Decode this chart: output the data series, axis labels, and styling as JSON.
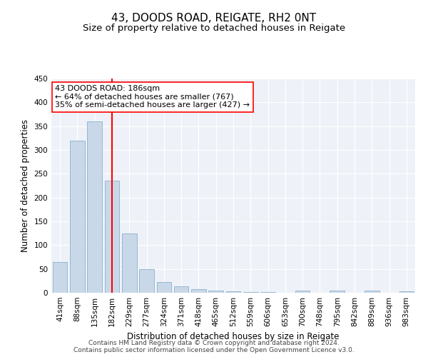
{
  "title": "43, DOODS ROAD, REIGATE, RH2 0NT",
  "subtitle": "Size of property relative to detached houses in Reigate",
  "xlabel": "Distribution of detached houses by size in Reigate",
  "ylabel": "Number of detached properties",
  "footer_line1": "Contains HM Land Registry data © Crown copyright and database right 2024.",
  "footer_line2": "Contains public sector information licensed under the Open Government Licence v3.0.",
  "categories": [
    "41sqm",
    "88sqm",
    "135sqm",
    "182sqm",
    "229sqm",
    "277sqm",
    "324sqm",
    "371sqm",
    "418sqm",
    "465sqm",
    "512sqm",
    "559sqm",
    "606sqm",
    "653sqm",
    "700sqm",
    "748sqm",
    "795sqm",
    "842sqm",
    "889sqm",
    "936sqm",
    "983sqm"
  ],
  "values": [
    65,
    320,
    360,
    235,
    125,
    50,
    22,
    13,
    8,
    5,
    3,
    1,
    1,
    0,
    5,
    0,
    5,
    0,
    5,
    0,
    3
  ],
  "bar_color": "#c8d8e8",
  "bar_edge_color": "#8ab0cc",
  "vline_x_index": 3,
  "vline_color": "red",
  "annotation_line1": "43 DOODS ROAD: 186sqm",
  "annotation_line2": "← 64% of detached houses are smaller (767)",
  "annotation_line3": "35% of semi-detached houses are larger (427) →",
  "annotation_box_color": "white",
  "annotation_box_edge_color": "red",
  "ylim": [
    0,
    450
  ],
  "yticks": [
    0,
    50,
    100,
    150,
    200,
    250,
    300,
    350,
    400,
    450
  ],
  "background_color": "#eef2f8",
  "title_fontsize": 11,
  "subtitle_fontsize": 9.5,
  "tick_fontsize": 7.5,
  "ylabel_fontsize": 8.5,
  "xlabel_fontsize": 8.5,
  "footer_fontsize": 6.5,
  "annotation_fontsize": 8
}
